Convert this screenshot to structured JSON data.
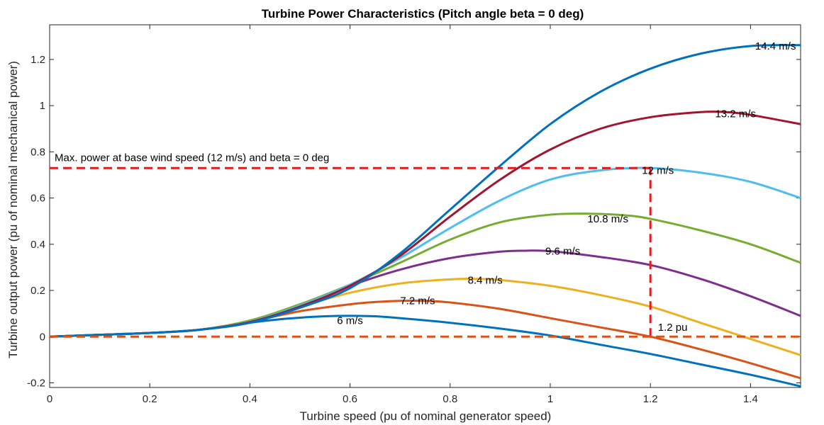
{
  "chart_data": {
    "type": "line",
    "title": "Turbine Power Characteristics (Pitch angle beta = 0 deg)",
    "xlabel": "Turbine speed (pu of nominal generator speed)",
    "ylabel": "Turbine output power (pu of nominal mechanical power)",
    "xlim": [
      0,
      1.5
    ],
    "ylim": [
      -0.22,
      1.35
    ],
    "xticks": [
      0,
      0.2,
      0.4,
      0.6,
      0.8,
      1,
      1.2,
      1.4
    ],
    "xtick_labels": [
      "0",
      "0.2",
      "0.4",
      "0.6",
      "0.8",
      "1",
      "1.2",
      "1.4"
    ],
    "yticks": [
      -0.2,
      0,
      0.2,
      0.4,
      0.6,
      0.8,
      1,
      1.2
    ],
    "ytick_labels": [
      "-0.2",
      "0",
      "0.2",
      "0.4",
      "0.6",
      "0.8",
      "1",
      "1.2"
    ],
    "grid": false,
    "series": [
      {
        "name": "6 m/s",
        "color": "#0072bd",
        "x": [
          0,
          0.1,
          0.2,
          0.3,
          0.4,
          0.45,
          0.5,
          0.55,
          0.6,
          0.65,
          0.7,
          0.8,
          0.9,
          1.0,
          1.1,
          1.2,
          1.3,
          1.4,
          1.5
        ],
        "y": [
          0,
          0.008,
          0.016,
          0.03,
          0.06,
          0.073,
          0.082,
          0.088,
          0.09,
          0.088,
          0.08,
          0.06,
          0.035,
          0.005,
          -0.035,
          -0.075,
          -0.12,
          -0.165,
          -0.215
        ]
      },
      {
        "name": "7.2 m/s",
        "color": "#d95319",
        "x": [
          0,
          0.1,
          0.2,
          0.3,
          0.4,
          0.5,
          0.6,
          0.65,
          0.7,
          0.75,
          0.8,
          0.9,
          1.0,
          1.1,
          1.2,
          1.3,
          1.4,
          1.5
        ],
        "y": [
          0,
          0.008,
          0.016,
          0.03,
          0.065,
          0.11,
          0.14,
          0.15,
          0.155,
          0.155,
          0.148,
          0.12,
          0.08,
          0.04,
          0.0,
          -0.055,
          -0.115,
          -0.18
        ]
      },
      {
        "name": "8.4 m/s",
        "color": "#edb120",
        "x": [
          0,
          0.1,
          0.2,
          0.3,
          0.4,
          0.5,
          0.6,
          0.7,
          0.8,
          0.85,
          0.9,
          1.0,
          1.1,
          1.2,
          1.3,
          1.4,
          1.5
        ],
        "y": [
          0,
          0.008,
          0.016,
          0.03,
          0.068,
          0.13,
          0.19,
          0.23,
          0.248,
          0.25,
          0.245,
          0.22,
          0.18,
          0.13,
          0.06,
          -0.01,
          -0.08
        ]
      },
      {
        "name": "9.6 m/s",
        "color": "#7e2f8e",
        "x": [
          0,
          0.1,
          0.2,
          0.3,
          0.4,
          0.5,
          0.6,
          0.7,
          0.8,
          0.9,
          0.95,
          1.0,
          1.1,
          1.2,
          1.3,
          1.4,
          1.5
        ],
        "y": [
          0,
          0.008,
          0.016,
          0.03,
          0.068,
          0.135,
          0.22,
          0.29,
          0.34,
          0.368,
          0.372,
          0.37,
          0.345,
          0.31,
          0.25,
          0.175,
          0.09
        ]
      },
      {
        "name": "10.8 m/s",
        "color": "#77ac30",
        "x": [
          0,
          0.1,
          0.2,
          0.3,
          0.4,
          0.5,
          0.6,
          0.7,
          0.8,
          0.9,
          1.0,
          1.08,
          1.15,
          1.2,
          1.3,
          1.4,
          1.5
        ],
        "y": [
          0,
          0.008,
          0.016,
          0.03,
          0.07,
          0.14,
          0.225,
          0.32,
          0.42,
          0.495,
          0.528,
          0.532,
          0.525,
          0.51,
          0.46,
          0.4,
          0.32
        ]
      },
      {
        "name": "12 m/s",
        "color": "#4dbeee",
        "x": [
          0,
          0.1,
          0.2,
          0.3,
          0.4,
          0.5,
          0.6,
          0.7,
          0.8,
          0.9,
          1.0,
          1.1,
          1.2,
          1.3,
          1.4,
          1.5
        ],
        "y": [
          0,
          0.008,
          0.016,
          0.03,
          0.065,
          0.135,
          0.225,
          0.34,
          0.47,
          0.59,
          0.68,
          0.72,
          0.73,
          0.71,
          0.67,
          0.6
        ]
      },
      {
        "name": "13.2 m/s",
        "color": "#a2142f",
        "x": [
          0,
          0.1,
          0.2,
          0.3,
          0.4,
          0.5,
          0.6,
          0.7,
          0.8,
          0.9,
          1.0,
          1.1,
          1.2,
          1.3,
          1.35,
          1.4,
          1.5
        ],
        "y": [
          0,
          0.008,
          0.016,
          0.03,
          0.063,
          0.13,
          0.22,
          0.35,
          0.52,
          0.68,
          0.81,
          0.9,
          0.95,
          0.972,
          0.972,
          0.96,
          0.92
        ]
      },
      {
        "name": "14.4 m/s",
        "color": "#0072bd",
        "x": [
          0,
          0.1,
          0.2,
          0.3,
          0.4,
          0.5,
          0.6,
          0.7,
          0.8,
          0.9,
          1.0,
          1.1,
          1.2,
          1.3,
          1.4,
          1.5
        ],
        "y": [
          0,
          0.008,
          0.016,
          0.03,
          0.06,
          0.125,
          0.21,
          0.36,
          0.55,
          0.74,
          0.92,
          1.06,
          1.16,
          1.225,
          1.258,
          1.262
        ]
      }
    ],
    "series_labels": [
      {
        "text": "6 m/s",
        "x": 0.6,
        "y": 0.07
      },
      {
        "text": "7.2 m/s",
        "x": 0.735,
        "y": 0.155
      },
      {
        "text": "8.4 m/s",
        "x": 0.87,
        "y": 0.245
      },
      {
        "text": "9.6 m/s",
        "x": 1.025,
        "y": 0.37
      },
      {
        "text": "10.8 m/s",
        "x": 1.115,
        "y": 0.51
      },
      {
        "text": "12 m/s",
        "x": 1.215,
        "y": 0.72
      },
      {
        "text": "13.2 m/s",
        "x": 1.37,
        "y": 0.965
      },
      {
        "text": "14.4 m/s",
        "x": 1.45,
        "y": 1.258
      }
    ],
    "annotations": [
      {
        "text": "Max. power at base wind speed (12 m/s) and beta = 0 deg",
        "x": 0.01,
        "y": 0.76
      },
      {
        "text": "1.2 pu",
        "x": 1.215,
        "y": 0.025
      }
    ],
    "reference_lines": [
      {
        "type": "horizontal",
        "y": 0.73,
        "x_range": [
          0,
          1.2
        ],
        "color": "#e41a1c",
        "style": "dashed"
      },
      {
        "type": "vertical",
        "x": 1.2,
        "y_range": [
          0,
          0.73
        ],
        "color": "#e41a1c",
        "style": "dashed"
      },
      {
        "type": "horizontal",
        "y": 0,
        "x_range": [
          0,
          1.5
        ],
        "color": "#d95319",
        "style": "dashed"
      }
    ]
  }
}
